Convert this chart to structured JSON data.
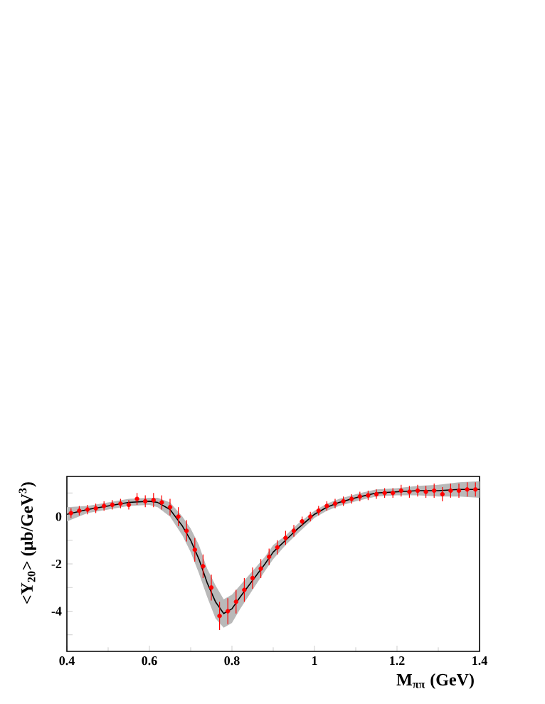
{
  "chart_data": {
    "type": "scatter",
    "xlabel": "M$_{ππ}$ (GeV)",
    "ylabel": "<Y$_{20}$> (μb/GeV$^{3}$)",
    "xlim": [
      0.4,
      1.4
    ],
    "xticks": [
      0.4,
      0.6,
      0.8,
      1,
      1.2,
      1.4
    ],
    "ylim": [
      -5.7,
      1.7
    ],
    "yticks": [
      {
        "value": -5,
        "label": null
      },
      -4,
      {
        "value": -3,
        "label": null
      },
      -2,
      {
        "value": -1,
        "label": null
      },
      0,
      {
        "value": 1,
        "label": null
      }
    ],
    "grid": false,
    "series": [
      {
        "type": "line",
        "color": "#000000",
        "marker": "none",
        "x": [
          0.4,
          0.45,
          0.5,
          0.55,
          0.6,
          0.62,
          0.65,
          0.68,
          0.7,
          0.72,
          0.74,
          0.76,
          0.78,
          0.8,
          0.82,
          0.85,
          0.88,
          0.9,
          0.93,
          0.96,
          1.0,
          1.03,
          1.06,
          1.1,
          1.15,
          1.2,
          1.25,
          1.3,
          1.35,
          1.4
        ],
        "values": [
          0.1,
          0.3,
          0.45,
          0.6,
          0.65,
          0.6,
          0.3,
          -0.4,
          -1.0,
          -1.8,
          -2.8,
          -3.6,
          -4.1,
          -3.9,
          -3.4,
          -2.7,
          -2.0,
          -1.5,
          -1.0,
          -0.5,
          0.1,
          0.4,
          0.6,
          0.8,
          1.0,
          1.05,
          1.1,
          1.1,
          1.15,
          1.15
        ],
        "lower": [
          -0.2,
          0.15,
          0.3,
          0.45,
          0.5,
          0.4,
          0.0,
          -0.8,
          -1.5,
          -2.4,
          -3.4,
          -4.3,
          -4.7,
          -4.5,
          -3.9,
          -3.1,
          -2.3,
          -1.8,
          -1.2,
          -0.7,
          -0.05,
          0.25,
          0.45,
          0.65,
          0.85,
          0.9,
          0.9,
          0.85,
          0.85,
          0.8
        ],
        "upper": [
          0.4,
          0.45,
          0.6,
          0.75,
          0.8,
          0.8,
          0.6,
          0.0,
          -0.5,
          -1.2,
          -2.2,
          -2.9,
          -3.5,
          -3.3,
          -2.9,
          -2.3,
          -1.7,
          -1.2,
          -0.8,
          -0.3,
          0.25,
          0.55,
          0.75,
          0.95,
          1.15,
          1.2,
          1.3,
          1.35,
          1.45,
          1.5
        ]
      },
      {
        "color": "#ff0000",
        "marker": "circle",
        "x": [
          0.41,
          0.43,
          0.45,
          0.47,
          0.49,
          0.51,
          0.53,
          0.55,
          0.57,
          0.59,
          0.61,
          0.63,
          0.65,
          0.67,
          0.69,
          0.71,
          0.73,
          0.75,
          0.77,
          0.79,
          0.81,
          0.83,
          0.85,
          0.87,
          0.89,
          0.91,
          0.93,
          0.95,
          0.97,
          0.99,
          1.01,
          1.03,
          1.05,
          1.07,
          1.09,
          1.11,
          1.13,
          1.15,
          1.17,
          1.19,
          1.21,
          1.23,
          1.25,
          1.27,
          1.29,
          1.31,
          1.33,
          1.35,
          1.37,
          1.39
        ],
        "values": [
          0.15,
          0.25,
          0.3,
          0.35,
          0.45,
          0.5,
          0.55,
          0.5,
          0.75,
          0.65,
          0.7,
          0.6,
          0.4,
          0.0,
          -0.6,
          -1.4,
          -2.1,
          -3.0,
          -4.2,
          -4.0,
          -3.6,
          -3.1,
          -2.6,
          -2.2,
          -1.7,
          -1.3,
          -0.9,
          -0.6,
          -0.2,
          0.0,
          0.25,
          0.45,
          0.55,
          0.65,
          0.75,
          0.85,
          0.9,
          0.95,
          1.0,
          1.0,
          1.1,
          1.05,
          1.1,
          1.05,
          1.1,
          0.95,
          1.1,
          1.1,
          1.15,
          1.15
        ],
        "errors": [
          0.2,
          0.2,
          0.2,
          0.2,
          0.2,
          0.2,
          0.2,
          0.2,
          0.25,
          0.25,
          0.3,
          0.3,
          0.35,
          0.4,
          0.45,
          0.5,
          0.5,
          0.55,
          0.6,
          0.55,
          0.5,
          0.5,
          0.45,
          0.4,
          0.35,
          0.3,
          0.3,
          0.25,
          0.2,
          0.2,
          0.2,
          0.2,
          0.2,
          0.2,
          0.2,
          0.2,
          0.2,
          0.2,
          0.2,
          0.2,
          0.25,
          0.25,
          0.25,
          0.25,
          0.3,
          0.3,
          0.3,
          0.3,
          0.3,
          0.3
        ]
      }
    ]
  }
}
